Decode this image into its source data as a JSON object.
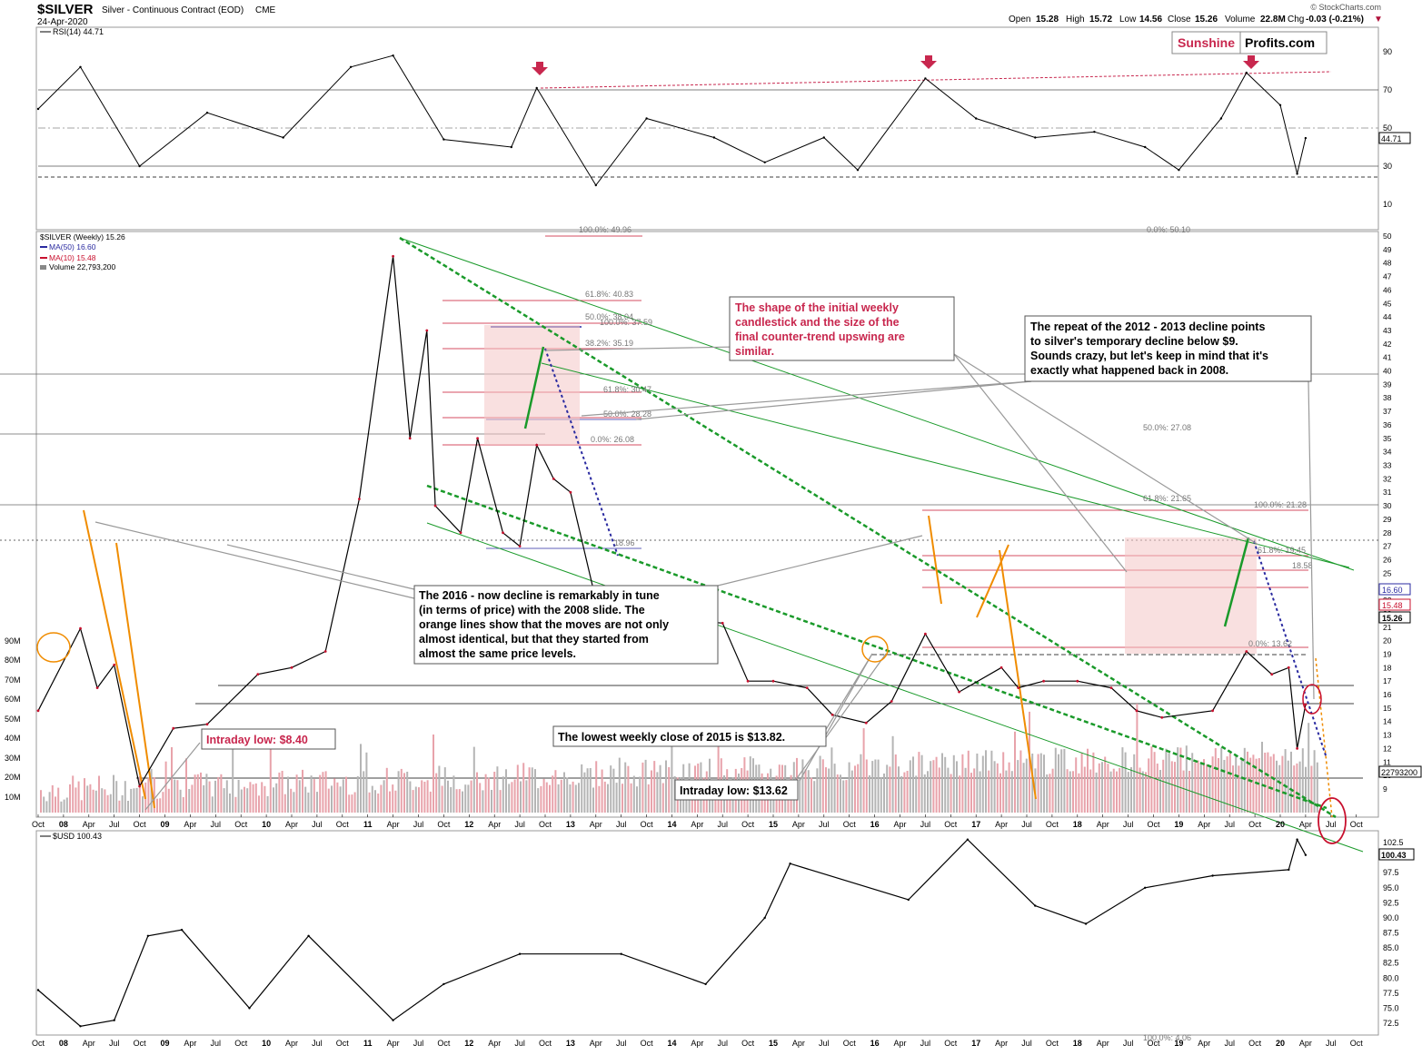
{
  "header": {
    "symbol": "$SILVER",
    "description": "Silver - Continuous Contract (EOD)",
    "exchange": "CME",
    "date": "24-Apr-2020",
    "copyright": "© StockCharts.com",
    "quote": {
      "open_label": "Open",
      "open": "15.28",
      "high_label": "High",
      "high": "15.72",
      "low_label": "Low",
      "low": "14.56",
      "close_label": "Close",
      "close": "15.26",
      "volume_label": "Volume",
      "volume": "22.8M",
      "chg_label": "Chg",
      "chg": "-0.03 (-0.21%)"
    }
  },
  "logo": {
    "part1": "Sunshine",
    "part2": "Profits.com",
    "part1_color": "#c8274e"
  },
  "rsi_panel": {
    "legend": "RSI(14) 44.71",
    "value_tag": "44.71",
    "ticks": [
      "90",
      "70",
      "50",
      "30",
      "10"
    ]
  },
  "price_panel": {
    "legend_title": "$SILVER (Weekly) 15.26",
    "legend_ma50": "MA(50) 16.60",
    "legend_ma10": "MA(10) 15.48",
    "legend_volume": "Volume 22,793,200",
    "ma50_color": "#2a2aa0",
    "ma10_color": "#c8102e",
    "tags": {
      "ma50": "16.60",
      "ma10": "15.48",
      "close": "15.26",
      "volume": "22793200"
    },
    "price_ticks": [
      "50",
      "49",
      "48",
      "47",
      "46",
      "45",
      "44",
      "43",
      "42",
      "41",
      "40",
      "39",
      "38",
      "37",
      "36",
      "35",
      "34",
      "33",
      "32",
      "31",
      "30",
      "29",
      "28",
      "27",
      "26",
      "25",
      "24",
      "23",
      "22",
      "21",
      "20",
      "19",
      "18",
      "17",
      "16",
      "15",
      "14",
      "13",
      "12",
      "11",
      "10",
      "9"
    ],
    "volume_ticks": [
      "90M",
      "80M",
      "70M",
      "60M",
      "50M",
      "40M",
      "30M",
      "20M",
      "10M"
    ],
    "fib_labels": [
      "100.0%: 49.96",
      "0.0%: 50.10",
      "61.8%: 40.83",
      "50.0%: 38.04",
      "100.0%: 37.59",
      "38.2%: 35.19",
      "61.8%: 30.47",
      "50.0%: 28.28",
      "0.0%: 26.08",
      "50.0%: 27.08",
      "61.8%: 21.65",
      "100.0%: 21.28",
      "61.8%: 19.45",
      "0.0%: 13.62",
      "18.96",
      "18.58",
      "100.0%: 4.06"
    ]
  },
  "annotations": {
    "shape": "The shape of the initial weekly candlestick and the size of the final counter-trend upswing are similar.",
    "repeat": "The repeat of the 2012 - 2013 decline points to silver's temporary decline below $9. Sounds crazy, but let's keep in mind that it's exactly what happened back in 2008.",
    "decline": "The 2016 - now decline is remarkably in tune (in terms of price) with the 2008 slide. The orange lines show that the moves are not only almost identical, but that they started from almost the same price levels.",
    "intraday_low_2008": "Intraday low: $8.40",
    "lowest_close_2015": "The lowest weekly close of 2015 is $13.82.",
    "intraday_low_2015": "Intraday low: $13.62"
  },
  "x_axis_labels": [
    "Oct",
    "08",
    "Apr",
    "Jul",
    "Oct",
    "09",
    "Apr",
    "Jul",
    "Oct",
    "10",
    "Apr",
    "Jul",
    "Oct",
    "11",
    "Apr",
    "Jul",
    "Oct",
    "12",
    "Apr",
    "Jul",
    "Oct",
    "13",
    "Apr",
    "Jul",
    "Oct",
    "14",
    "Apr",
    "Jul",
    "Oct",
    "15",
    "Apr",
    "Jul",
    "Oct",
    "16",
    "Apr",
    "Jul",
    "Oct",
    "17",
    "Apr",
    "Jul",
    "Oct",
    "18",
    "Apr",
    "Jul",
    "Oct",
    "19",
    "Apr",
    "Jul",
    "Oct",
    "20",
    "Apr",
    "Jul",
    "Oct"
  ],
  "usd_panel": {
    "legend": "$USD 100.43",
    "value_tag": "100.43",
    "ticks": [
      "102.5",
      "100.0",
      "97.5",
      "95.0",
      "92.5",
      "90.0",
      "87.5",
      "85.0",
      "82.5",
      "80.0",
      "77.5",
      "75.0",
      "72.5"
    ]
  },
  "chart_data": [
    {
      "type": "line",
      "title": "RSI(14) 44.71",
      "ylim": [
        0,
        100
      ],
      "ticks": [
        10,
        30,
        50,
        70,
        90
      ],
      "levels": [
        70,
        50,
        30
      ],
      "x": [
        "2007-10",
        "2008-03",
        "2008-10",
        "2009-06",
        "2010-03",
        "2010-11",
        "2011-04",
        "2011-10",
        "2012-06",
        "2012-09",
        "2013-04",
        "2013-10",
        "2014-06",
        "2014-12",
        "2015-07",
        "2015-11",
        "2016-07",
        "2017-01",
        "2017-08",
        "2018-03",
        "2018-09",
        "2019-01",
        "2019-06",
        "2019-09",
        "2020-01",
        "2020-03",
        "2020-04"
      ],
      "values": [
        60,
        82,
        30,
        58,
        45,
        82,
        88,
        44,
        40,
        71,
        20,
        55,
        45,
        32,
        45,
        28,
        76,
        55,
        45,
        48,
        40,
        28,
        55,
        79,
        62,
        26,
        44.71
      ]
    },
    {
      "type": "line",
      "title": "$SILVER (Weekly) 15.26",
      "ylim": [
        8,
        50
      ],
      "x": [
        "2007-10",
        "2008-03",
        "2008-05",
        "2008-07",
        "2008-10",
        "2009-02",
        "2009-06",
        "2009-12",
        "2010-04",
        "2010-08",
        "2010-12",
        "2011-04",
        "2011-06",
        "2011-08",
        "2011-09",
        "2011-12",
        "2012-02",
        "2012-05",
        "2012-07",
        "2012-09",
        "2012-11",
        "2013-01",
        "2013-04",
        "2013-06",
        "2013-08",
        "2013-12",
        "2014-03",
        "2014-07",
        "2014-10",
        "2015-01",
        "2015-05",
        "2015-08",
        "2015-12",
        "2016-03",
        "2016-07",
        "2016-11",
        "2017-04",
        "2017-06",
        "2017-09",
        "2018-01",
        "2018-05",
        "2018-08",
        "2018-11",
        "2019-05",
        "2019-09",
        "2019-12",
        "2020-02",
        "2020-03",
        "2020-04"
      ],
      "series": [
        {
          "name": "$SILVER (Weekly)",
          "values": [
            14.8,
            20.9,
            16.5,
            18.2,
            9.2,
            13.5,
            13.8,
            17.5,
            18.0,
            19.2,
            30.5,
            48.5,
            35.0,
            43.0,
            30.0,
            28.0,
            35.0,
            28.0,
            27.0,
            34.5,
            32.0,
            31.0,
            23.0,
            19.0,
            24.0,
            19.5,
            21.5,
            21.3,
            17.0,
            17.0,
            16.5,
            14.5,
            13.9,
            15.5,
            20.5,
            16.2,
            18.0,
            16.5,
            17.0,
            17.0,
            16.5,
            14.8,
            14.3,
            14.8,
            19.2,
            17.5,
            18.0,
            12.0,
            15.26
          ]
        }
      ],
      "legend": [
        "MA(50) 16.60",
        "MA(10) 15.48",
        "Volume 22,793,200"
      ]
    },
    {
      "type": "line",
      "title": "$USD 100.43",
      "ylim": [
        72.5,
        102.5
      ],
      "x": [
        "2007-10",
        "2008-03",
        "2008-07",
        "2008-11",
        "2009-03",
        "2009-11",
        "2010-06",
        "2011-04",
        "2011-10",
        "2012-07",
        "2013-07",
        "2014-05",
        "2014-12",
        "2015-03",
        "2016-05",
        "2016-12",
        "2017-08",
        "2018-02",
        "2018-09",
        "2019-05",
        "2020-02",
        "2020-03",
        "2020-04"
      ],
      "values": [
        78,
        72,
        73,
        87,
        88,
        75,
        87,
        73,
        79,
        84,
        84,
        79,
        90,
        99,
        93,
        103,
        92,
        89,
        95,
        97,
        98,
        103,
        100.43
      ]
    }
  ]
}
